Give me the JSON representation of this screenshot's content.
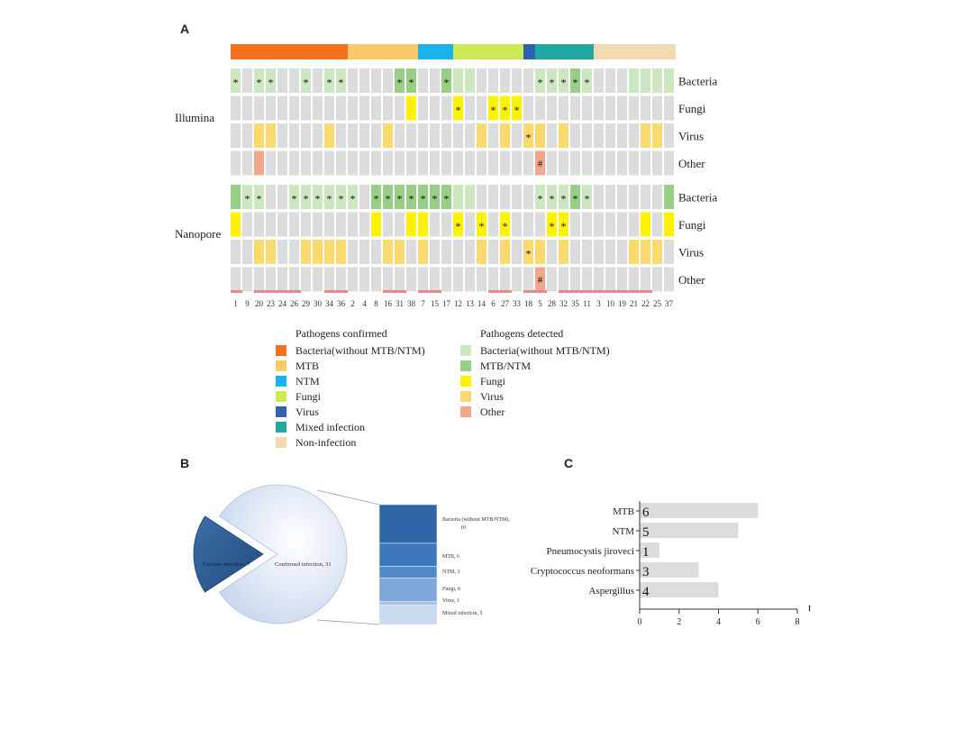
{
  "panel_labels": {
    "a": "A",
    "b": "B",
    "c": "C"
  },
  "colors": {
    "bacteria_confirmed": "#F4721E",
    "mtb_confirmed": "#FBC96A",
    "ntm_confirmed": "#1BB3EA",
    "fungi_confirmed": "#CBEA58",
    "virus_confirmed": "#2E62B0",
    "mixed_confirmed": "#20A7A1",
    "noninfection_confirmed": "#F3D9B1",
    "bacteria_detected": "#CDE8C1",
    "mtbntm_detected": "#96CF85",
    "fungi_detected": "#FFF200",
    "virus_detected": "#FAD96E",
    "other_detected": "#F2A68A",
    "empty_cell": "#DCDCDC",
    "underline": "#E88888"
  },
  "chart_data": [
    {
      "type": "heatmap",
      "panel": "A",
      "sample_ids": [
        "1",
        "9",
        "20",
        "23",
        "24",
        "26",
        "29",
        "30",
        "34",
        "36",
        "2",
        "4",
        "8",
        "16",
        "31",
        "38",
        "7",
        "15",
        "17",
        "12",
        "13",
        "14",
        "6",
        "27",
        "33",
        "18",
        "5",
        "28",
        "32",
        "35",
        "11",
        "3",
        "10",
        "19",
        "21",
        "22",
        "25",
        "37"
      ],
      "confirmed_groups": [
        {
          "category": "Bacteria(without MTB/NTM)",
          "count": 10
        },
        {
          "category": "MTB",
          "count": 6
        },
        {
          "category": "NTM",
          "count": 3
        },
        {
          "category": "Fungi",
          "count": 6
        },
        {
          "category": "Virus",
          "count": 1
        },
        {
          "category": "Mixed infection",
          "count": 5
        },
        {
          "category": "Non-infection",
          "count": 7
        }
      ],
      "platform_labels": [
        "Illumina",
        "Nanopore"
      ],
      "row_labels": [
        "Bacteria",
        "Fungi",
        "Virus",
        "Other"
      ],
      "cell_codes": {
        "0": "not detected",
        "1": "Bacteria(without MTB/NTM)",
        "2": "MTB/NTM",
        "3": "Fungi",
        "4": "Virus",
        "5": "Other"
      },
      "illumina": {
        "bacteria": [
          1,
          0,
          1,
          1,
          0,
          0,
          1,
          0,
          1,
          1,
          0,
          0,
          0,
          0,
          2,
          2,
          0,
          0,
          2,
          1,
          1,
          0,
          0,
          0,
          0,
          0,
          1,
          1,
          1,
          2,
          1,
          0,
          0,
          0,
          1,
          1,
          1,
          1
        ],
        "fungi": [
          0,
          0,
          0,
          0,
          0,
          0,
          0,
          0,
          0,
          0,
          0,
          0,
          0,
          0,
          0,
          3,
          0,
          0,
          0,
          3,
          0,
          0,
          3,
          3,
          3,
          0,
          0,
          0,
          0,
          0,
          0,
          0,
          0,
          0,
          0,
          0,
          0,
          0
        ],
        "virus": [
          0,
          0,
          4,
          4,
          0,
          0,
          0,
          0,
          4,
          0,
          0,
          0,
          0,
          4,
          0,
          0,
          0,
          0,
          0,
          0,
          0,
          4,
          0,
          4,
          0,
          4,
          4,
          0,
          4,
          0,
          0,
          0,
          0,
          0,
          0,
          4,
          4,
          0
        ],
        "other": [
          0,
          0,
          5,
          0,
          0,
          0,
          0,
          0,
          0,
          0,
          0,
          0,
          0,
          0,
          0,
          0,
          0,
          0,
          0,
          0,
          0,
          0,
          0,
          0,
          0,
          0,
          5,
          0,
          0,
          0,
          0,
          0,
          0,
          0,
          0,
          0,
          0,
          0
        ]
      },
      "nanopore": {
        "bacteria": [
          2,
          1,
          1,
          0,
          0,
          1,
          1,
          1,
          1,
          1,
          1,
          0,
          2,
          2,
          2,
          2,
          2,
          2,
          2,
          1,
          1,
          0,
          0,
          0,
          0,
          0,
          1,
          1,
          1,
          2,
          1,
          0,
          0,
          0,
          0,
          0,
          0,
          2
        ],
        "fungi": [
          3,
          0,
          0,
          0,
          0,
          0,
          0,
          0,
          0,
          0,
          0,
          0,
          3,
          0,
          0,
          3,
          3,
          0,
          0,
          3,
          0,
          3,
          0,
          3,
          0,
          0,
          0,
          3,
          3,
          0,
          0,
          0,
          0,
          0,
          0,
          3,
          0,
          3
        ],
        "virus": [
          0,
          0,
          4,
          4,
          0,
          0,
          4,
          4,
          4,
          4,
          0,
          0,
          0,
          4,
          4,
          0,
          4,
          0,
          0,
          0,
          0,
          4,
          0,
          4,
          0,
          4,
          4,
          0,
          4,
          0,
          0,
          0,
          0,
          0,
          4,
          4,
          4,
          0
        ],
        "other": [
          0,
          0,
          0,
          0,
          0,
          0,
          0,
          0,
          0,
          0,
          0,
          0,
          0,
          0,
          0,
          0,
          0,
          0,
          0,
          0,
          0,
          0,
          0,
          0,
          0,
          0,
          5,
          0,
          0,
          0,
          0,
          0,
          0,
          0,
          0,
          0,
          0,
          0
        ]
      },
      "illumina_stars": {
        "bacteria": [
          0,
          2,
          3,
          6,
          8,
          9,
          14,
          15,
          18,
          26,
          27,
          28,
          29,
          30
        ],
        "fungi": [
          19,
          22,
          23,
          24
        ],
        "virus": [
          25
        ],
        "other": []
      },
      "illumina_hash": {
        "other": [
          26
        ]
      },
      "nanopore_stars": {
        "bacteria": [
          1,
          2,
          5,
          6,
          7,
          8,
          9,
          10,
          12,
          13,
          14,
          15,
          16,
          17,
          18,
          26,
          27,
          28,
          29,
          30
        ],
        "fungi": [
          19,
          21,
          23,
          27,
          28
        ],
        "virus": [
          25
        ],
        "other": []
      },
      "nanopore_hash": {
        "other": [
          26
        ]
      },
      "underlined_ids": [
        0,
        2,
        3,
        4,
        5,
        8,
        9,
        13,
        14,
        16,
        17,
        22,
        23,
        25,
        26,
        28,
        29,
        30,
        31,
        32,
        33,
        34,
        35
      ],
      "star_symbol": "*",
      "hash_symbol": "#"
    },
    {
      "type": "pie",
      "panel": "B",
      "slices": [
        {
          "label": "Exclude infection, 7",
          "value": 7
        },
        {
          "label": "Confirmed infection, 31",
          "value": 31
        }
      ],
      "breakdown": [
        {
          "label": "Bacteria (without MTB/NTM),",
          "label2": "10",
          "value": 10
        },
        {
          "label": "MTB, 6",
          "value": 6
        },
        {
          "label": "NTM, 3",
          "value": 3
        },
        {
          "label": "Fungi, 6",
          "value": 6
        },
        {
          "label": "Virus, 1",
          "value": 1
        },
        {
          "label": "Mixed infection, 5",
          "value": 5
        }
      ]
    },
    {
      "type": "bar",
      "panel": "C",
      "orientation": "horizontal",
      "categories": [
        "MTB",
        "NTM",
        "Pneumocystis jiroveci",
        "Cryptococcus neoformans",
        "Aspergillus"
      ],
      "values": [
        6,
        5,
        1,
        3,
        4
      ],
      "xlabel": "n",
      "xlim": [
        0,
        8
      ],
      "xticks": [
        "0",
        "2",
        "4",
        "6",
        "8"
      ]
    }
  ],
  "legend": {
    "confirmed_title": "Pathogens confirmed",
    "detected_title": "Pathogens detected",
    "confirmed_items": [
      {
        "label": "Bacteria(without MTB/NTM)",
        "color": "#F4721E"
      },
      {
        "label": "MTB",
        "color": "#FBC96A"
      },
      {
        "label": "NTM",
        "color": "#1BB3EA"
      },
      {
        "label": "Fungi",
        "color": "#CBEA58"
      },
      {
        "label": "Virus",
        "color": "#2E62B0"
      },
      {
        "label": "Mixed infection",
        "color": "#20A7A1"
      },
      {
        "label": "Non-infection",
        "color": "#F3D9B1"
      }
    ],
    "detected_items": [
      {
        "label": "Bacteria(without MTB/NTM)",
        "color": "#CDE8C1"
      },
      {
        "label": "MTB/NTM",
        "color": "#96CF85"
      },
      {
        "label": "Fungi",
        "color": "#FFF200"
      },
      {
        "label": "Virus",
        "color": "#FAD96E"
      },
      {
        "label": "Other",
        "color": "#F2A68A"
      }
    ]
  }
}
